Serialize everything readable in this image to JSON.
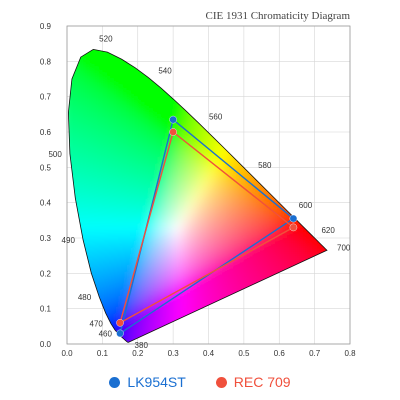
{
  "chart_data": {
    "type": "scatter",
    "title": "CIE 1931 Chromaticity Diagram",
    "xlabel": "",
    "ylabel": "",
    "xlim": [
      0.0,
      0.8
    ],
    "ylim": [
      0.0,
      0.9
    ],
    "grid": true,
    "legend_position": "bottom-center",
    "x_ticks": [
      "0.0",
      "0.1",
      "0.2",
      "0.3",
      "0.4",
      "0.5",
      "0.6",
      "0.7",
      "0.8"
    ],
    "y_ticks": [
      "0.0",
      "0.1",
      "0.2",
      "0.3",
      "0.4",
      "0.5",
      "0.6",
      "0.7",
      "0.8",
      "0.9"
    ],
    "spectral_locus": [
      [
        0.1741,
        0.005
      ],
      [
        0.1738,
        0.0049
      ],
      [
        0.1736,
        0.0049
      ],
      [
        0.1733,
        0.0048
      ],
      [
        0.173,
        0.0048
      ],
      [
        0.1726,
        0.0048
      ],
      [
        0.1721,
        0.0048
      ],
      [
        0.1714,
        0.0051
      ],
      [
        0.1703,
        0.0058
      ],
      [
        0.1689,
        0.0069
      ],
      [
        0.1669,
        0.0086
      ],
      [
        0.1644,
        0.0109
      ],
      [
        0.1611,
        0.0138
      ],
      [
        0.1566,
        0.0177
      ],
      [
        0.151,
        0.0227
      ],
      [
        0.144,
        0.0297
      ],
      [
        0.1355,
        0.0399
      ],
      [
        0.1241,
        0.0578
      ],
      [
        0.1096,
        0.0868
      ],
      [
        0.0913,
        0.1327
      ],
      [
        0.0687,
        0.2007
      ],
      [
        0.0454,
        0.295
      ],
      [
        0.0235,
        0.4127
      ],
      [
        0.0082,
        0.5384
      ],
      [
        0.0039,
        0.6548
      ],
      [
        0.0139,
        0.7502
      ],
      [
        0.0389,
        0.812
      ],
      [
        0.0743,
        0.8338
      ],
      [
        0.1142,
        0.8262
      ],
      [
        0.1547,
        0.8059
      ],
      [
        0.1929,
        0.7816
      ],
      [
        0.2296,
        0.7543
      ],
      [
        0.2658,
        0.7243
      ],
      [
        0.3016,
        0.6923
      ],
      [
        0.3373,
        0.6589
      ],
      [
        0.3731,
        0.6245
      ],
      [
        0.4087,
        0.5896
      ],
      [
        0.4441,
        0.5547
      ],
      [
        0.4788,
        0.5202
      ],
      [
        0.5125,
        0.4866
      ],
      [
        0.5448,
        0.4544
      ],
      [
        0.5752,
        0.4242
      ],
      [
        0.6029,
        0.3965
      ],
      [
        0.627,
        0.3725
      ],
      [
        0.6482,
        0.3514
      ],
      [
        0.6658,
        0.334
      ],
      [
        0.6801,
        0.3197
      ],
      [
        0.6915,
        0.3083
      ],
      [
        0.7006,
        0.2993
      ],
      [
        0.7079,
        0.292
      ],
      [
        0.714,
        0.2859
      ],
      [
        0.719,
        0.2809
      ],
      [
        0.723,
        0.277
      ],
      [
        0.726,
        0.274
      ],
      [
        0.7283,
        0.2717
      ],
      [
        0.73,
        0.27
      ],
      [
        0.7311,
        0.2689
      ],
      [
        0.732,
        0.268
      ],
      [
        0.7327,
        0.2673
      ],
      [
        0.7334,
        0.2666
      ],
      [
        0.734,
        0.266
      ],
      [
        0.7344,
        0.2656
      ],
      [
        0.7346,
        0.2654
      ],
      [
        0.7347,
        0.2653
      ]
    ],
    "wavelength_labels": [
      {
        "label": "380",
        "x": 0.174,
        "y": 0.005
      },
      {
        "label": "460",
        "x": 0.144,
        "y": 0.03
      },
      {
        "label": "470",
        "x": 0.124,
        "y": 0.058
      },
      {
        "label": "480",
        "x": 0.091,
        "y": 0.133
      },
      {
        "label": "490",
        "x": 0.045,
        "y": 0.295
      },
      {
        "label": "500",
        "x": 0.008,
        "y": 0.538
      },
      {
        "label": "520",
        "x": 0.074,
        "y": 0.834
      },
      {
        "label": "540",
        "x": 0.23,
        "y": 0.754
      },
      {
        "label": "560",
        "x": 0.373,
        "y": 0.624
      },
      {
        "label": "580",
        "x": 0.512,
        "y": 0.487
      },
      {
        "label": "600",
        "x": 0.627,
        "y": 0.373
      },
      {
        "label": "620",
        "x": 0.691,
        "y": 0.308
      },
      {
        "label": "700",
        "x": 0.735,
        "y": 0.265
      }
    ],
    "series": [
      {
        "name": "LK954ST",
        "color": "#1a6fd1",
        "x": [
          0.64,
          0.3,
          0.15
        ],
        "y": [
          0.355,
          0.635,
          0.03
        ]
      },
      {
        "name": "REC 709",
        "color": "#f0503c",
        "x": [
          0.64,
          0.3,
          0.15
        ],
        "y": [
          0.33,
          0.6,
          0.06
        ]
      }
    ]
  }
}
